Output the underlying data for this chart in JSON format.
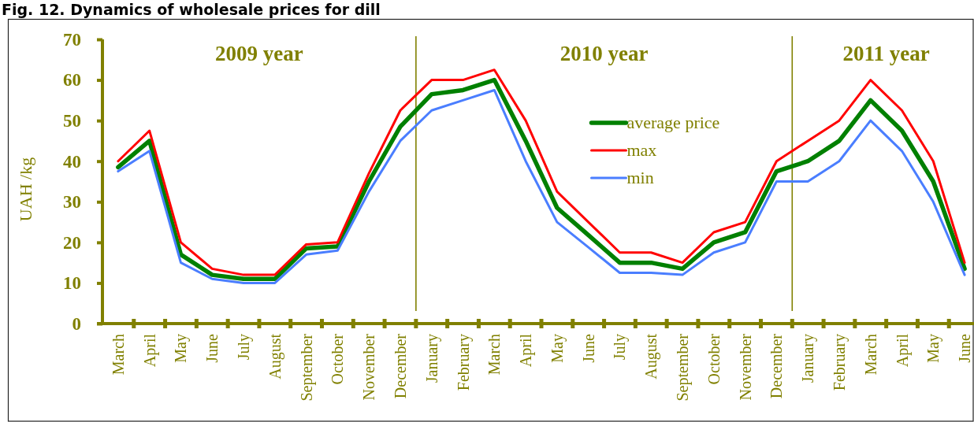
{
  "chart_data": {
    "type": "line",
    "title": "Fig. 12. Dynamics of wholesale prices for dill",
    "ylabel": "UAH /kg",
    "categories": [
      "March",
      "April",
      "May",
      "June",
      "July",
      "August",
      "September",
      "October",
      "November",
      "December",
      "January",
      "February",
      "March",
      "April",
      "May",
      "June",
      "July",
      "August",
      "September",
      "October",
      "November",
      "December",
      "January",
      "February",
      "March",
      "April",
      "May",
      "June"
    ],
    "series": [
      {
        "name": "average price",
        "color": "#008000",
        "values": [
          38.5,
          45,
          17,
          12,
          11,
          11,
          18.5,
          19,
          35,
          48.5,
          56.5,
          57.5,
          60,
          45,
          28.5,
          21.8,
          15,
          15,
          13.5,
          20,
          22.5,
          37.5,
          40,
          45,
          55,
          47.5,
          35,
          13.5
        ]
      },
      {
        "name": "max",
        "color": "#ff0000",
        "values": [
          40,
          47.5,
          20,
          13.5,
          12,
          12,
          19.5,
          20,
          37,
          52.5,
          60,
          60,
          62.5,
          50,
          32.5,
          25,
          17.5,
          17.5,
          15,
          22.5,
          25,
          40,
          45,
          50,
          60,
          52.5,
          40,
          15
        ]
      },
      {
        "name": "min",
        "color": "#4a7eff",
        "values": [
          37.5,
          42.5,
          15,
          11,
          10,
          10,
          17,
          18,
          32.5,
          45,
          52.5,
          55,
          57.5,
          40,
          25,
          18.8,
          12.5,
          12.5,
          12,
          17.5,
          20,
          35,
          35,
          40,
          50,
          42.5,
          30,
          12
        ]
      }
    ],
    "ylim": [
      0,
      70
    ],
    "yticks": [
      0,
      10,
      20,
      30,
      40,
      50,
      60,
      70
    ],
    "legend": "top",
    "annotations": [
      "2009 year",
      "2010 year",
      "2011 year"
    ]
  }
}
